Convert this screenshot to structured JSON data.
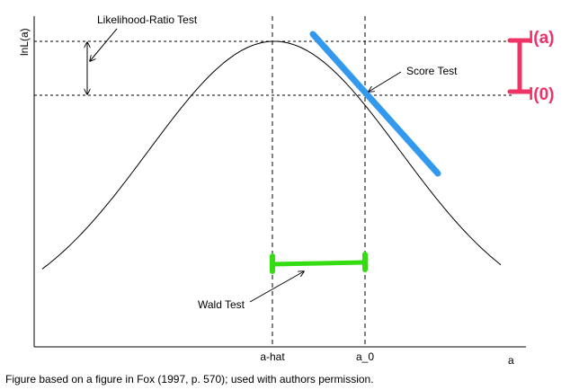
{
  "axes": {
    "ylabel": "lnL(a)",
    "xlabel": "a",
    "ticks": [
      "a-hat",
      "a_0"
    ]
  },
  "annotations": {
    "likelihood_ratio": "Likelihood-Ratio Test",
    "score": "Score Test",
    "wald": "Wald Test"
  },
  "markers": {
    "top": "l(a)",
    "bottom": "l(0)"
  },
  "caption": "Figure based on a figure in Fox (1997, p. 570); used with authors permission.",
  "colors": {
    "curve": "#000000",
    "score_line": "#3399ee",
    "wald_bar": "#33dd11",
    "marker": "#ee3366"
  }
}
